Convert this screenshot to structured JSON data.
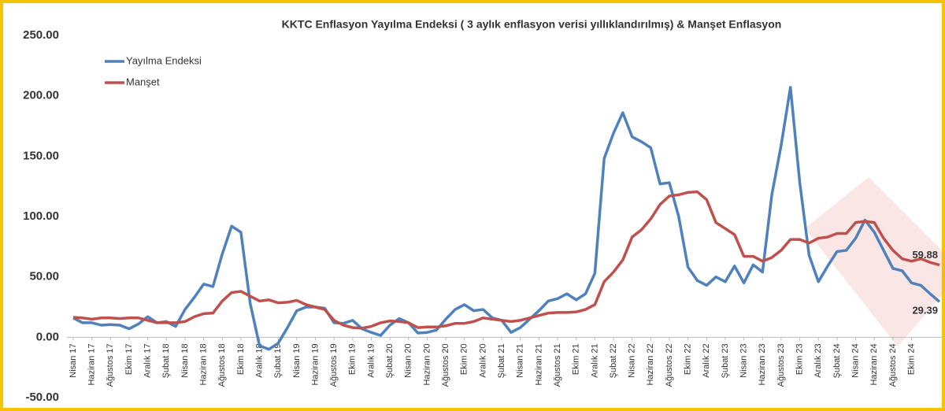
{
  "chart_data": {
    "type": "line",
    "title": "KKTC Enflasyon Yayılma Endeksi ( 3 aylık enflasyon verisi yıllıklandırılmış) & Manşet Enflasyon",
    "categories": [
      "Nisan 17",
      null,
      "Haziran 17",
      null,
      "Ağustos 17",
      null,
      "Ekim 17",
      null,
      "Aralık 17",
      null,
      "Şubat 18",
      null,
      "Nisan 18",
      null,
      "Haziran 18",
      null,
      "Ağustos 18",
      null,
      "Ekim 18",
      null,
      "Aralık 18",
      null,
      "Şubat 19",
      null,
      "Nisan 19",
      null,
      "Haziran 19",
      null,
      "Ağustos 19",
      null,
      "Ekim 19",
      null,
      "Aralık 19",
      null,
      "Şubat 20",
      null,
      "Nisan 20",
      null,
      "Haziran 20",
      null,
      "Ağustos 20",
      null,
      "Ekim 20",
      null,
      "Aralık 20",
      null,
      "Şubat 21",
      null,
      "Nisan 21",
      null,
      "Haziran 21",
      null,
      "Ağustos 21",
      null,
      "Ekim 21",
      null,
      "Aralık 21",
      null,
      "Şubat 22",
      null,
      "Nisan 22",
      null,
      "Haziran 22",
      null,
      "Ağustos 22",
      null,
      "Ekim 22",
      null,
      "Aralık 22",
      null,
      "Şubat 23",
      null,
      "Nisan 23",
      null,
      "Haziran 23",
      null,
      "Ağustos 23",
      null,
      "Ekim 23",
      null,
      "Aralık 23",
      null,
      "Şubat 24",
      null,
      "Nisan 24",
      null,
      "Haziran 24",
      null,
      "Ağustos 24",
      null,
      "Ekim 24",
      null,
      null,
      null
    ],
    "series": [
      {
        "name": "Yayılma Endeksi",
        "color": "#4f81bd",
        "values": [
          16,
          12,
          12,
          10,
          10.5,
          10,
          7,
          11,
          17,
          12,
          13,
          9,
          23,
          33,
          44,
          42,
          69,
          92,
          87,
          28,
          -7,
          -10,
          -5,
          8,
          22,
          25,
          25,
          24,
          12,
          11.5,
          14,
          7,
          4,
          1.5,
          10,
          15.5,
          12,
          3.5,
          4,
          6,
          15,
          23,
          27,
          22,
          23,
          16,
          14,
          4,
          8,
          15,
          22,
          30,
          32,
          36,
          31,
          36,
          53,
          148,
          169,
          186,
          166,
          162,
          157,
          127,
          128,
          100,
          58,
          47,
          43,
          50,
          46,
          59,
          45,
          60,
          54,
          118,
          159,
          207,
          128,
          68,
          46,
          59,
          71,
          72,
          82,
          97,
          87,
          72,
          57,
          55,
          45,
          43,
          36,
          29.39
        ]
      },
      {
        "name": "Manşet",
        "color": "#c0504d",
        "values": [
          16.5,
          16,
          15,
          16,
          16,
          15.5,
          16,
          16,
          14,
          12,
          12,
          12,
          13,
          17,
          19.5,
          20,
          30,
          37,
          38,
          34,
          30,
          31,
          28.5,
          29,
          30.5,
          27,
          25,
          23,
          14,
          10,
          8,
          7.5,
          9,
          12,
          13.5,
          13,
          12,
          8,
          8.5,
          8.5,
          9.5,
          11.5,
          11.5,
          13,
          16,
          15,
          14,
          13,
          14,
          16,
          18,
          20,
          20.5,
          20.5,
          21,
          23,
          27,
          46,
          54,
          64,
          83,
          89,
          98,
          110,
          117,
          118,
          120,
          120.5,
          114,
          95,
          90,
          85,
          67,
          67,
          63,
          66,
          72,
          81,
          81,
          78,
          82,
          83,
          86,
          86,
          95,
          96,
          95,
          82,
          72,
          65,
          63,
          65,
          62,
          59.88
        ]
      }
    ],
    "ylim": [
      -50,
      250
    ],
    "yticks": [
      {
        "value": -50,
        "label": "-50.00"
      },
      {
        "value": 0,
        "label": "0.00"
      },
      {
        "value": 50,
        "label": "50.00"
      },
      {
        "value": 100,
        "label": "100.00"
      },
      {
        "value": 150,
        "label": "150.00"
      },
      {
        "value": 200,
        "label": "200.00"
      },
      {
        "value": 250,
        "label": "250.00"
      }
    ]
  }
}
